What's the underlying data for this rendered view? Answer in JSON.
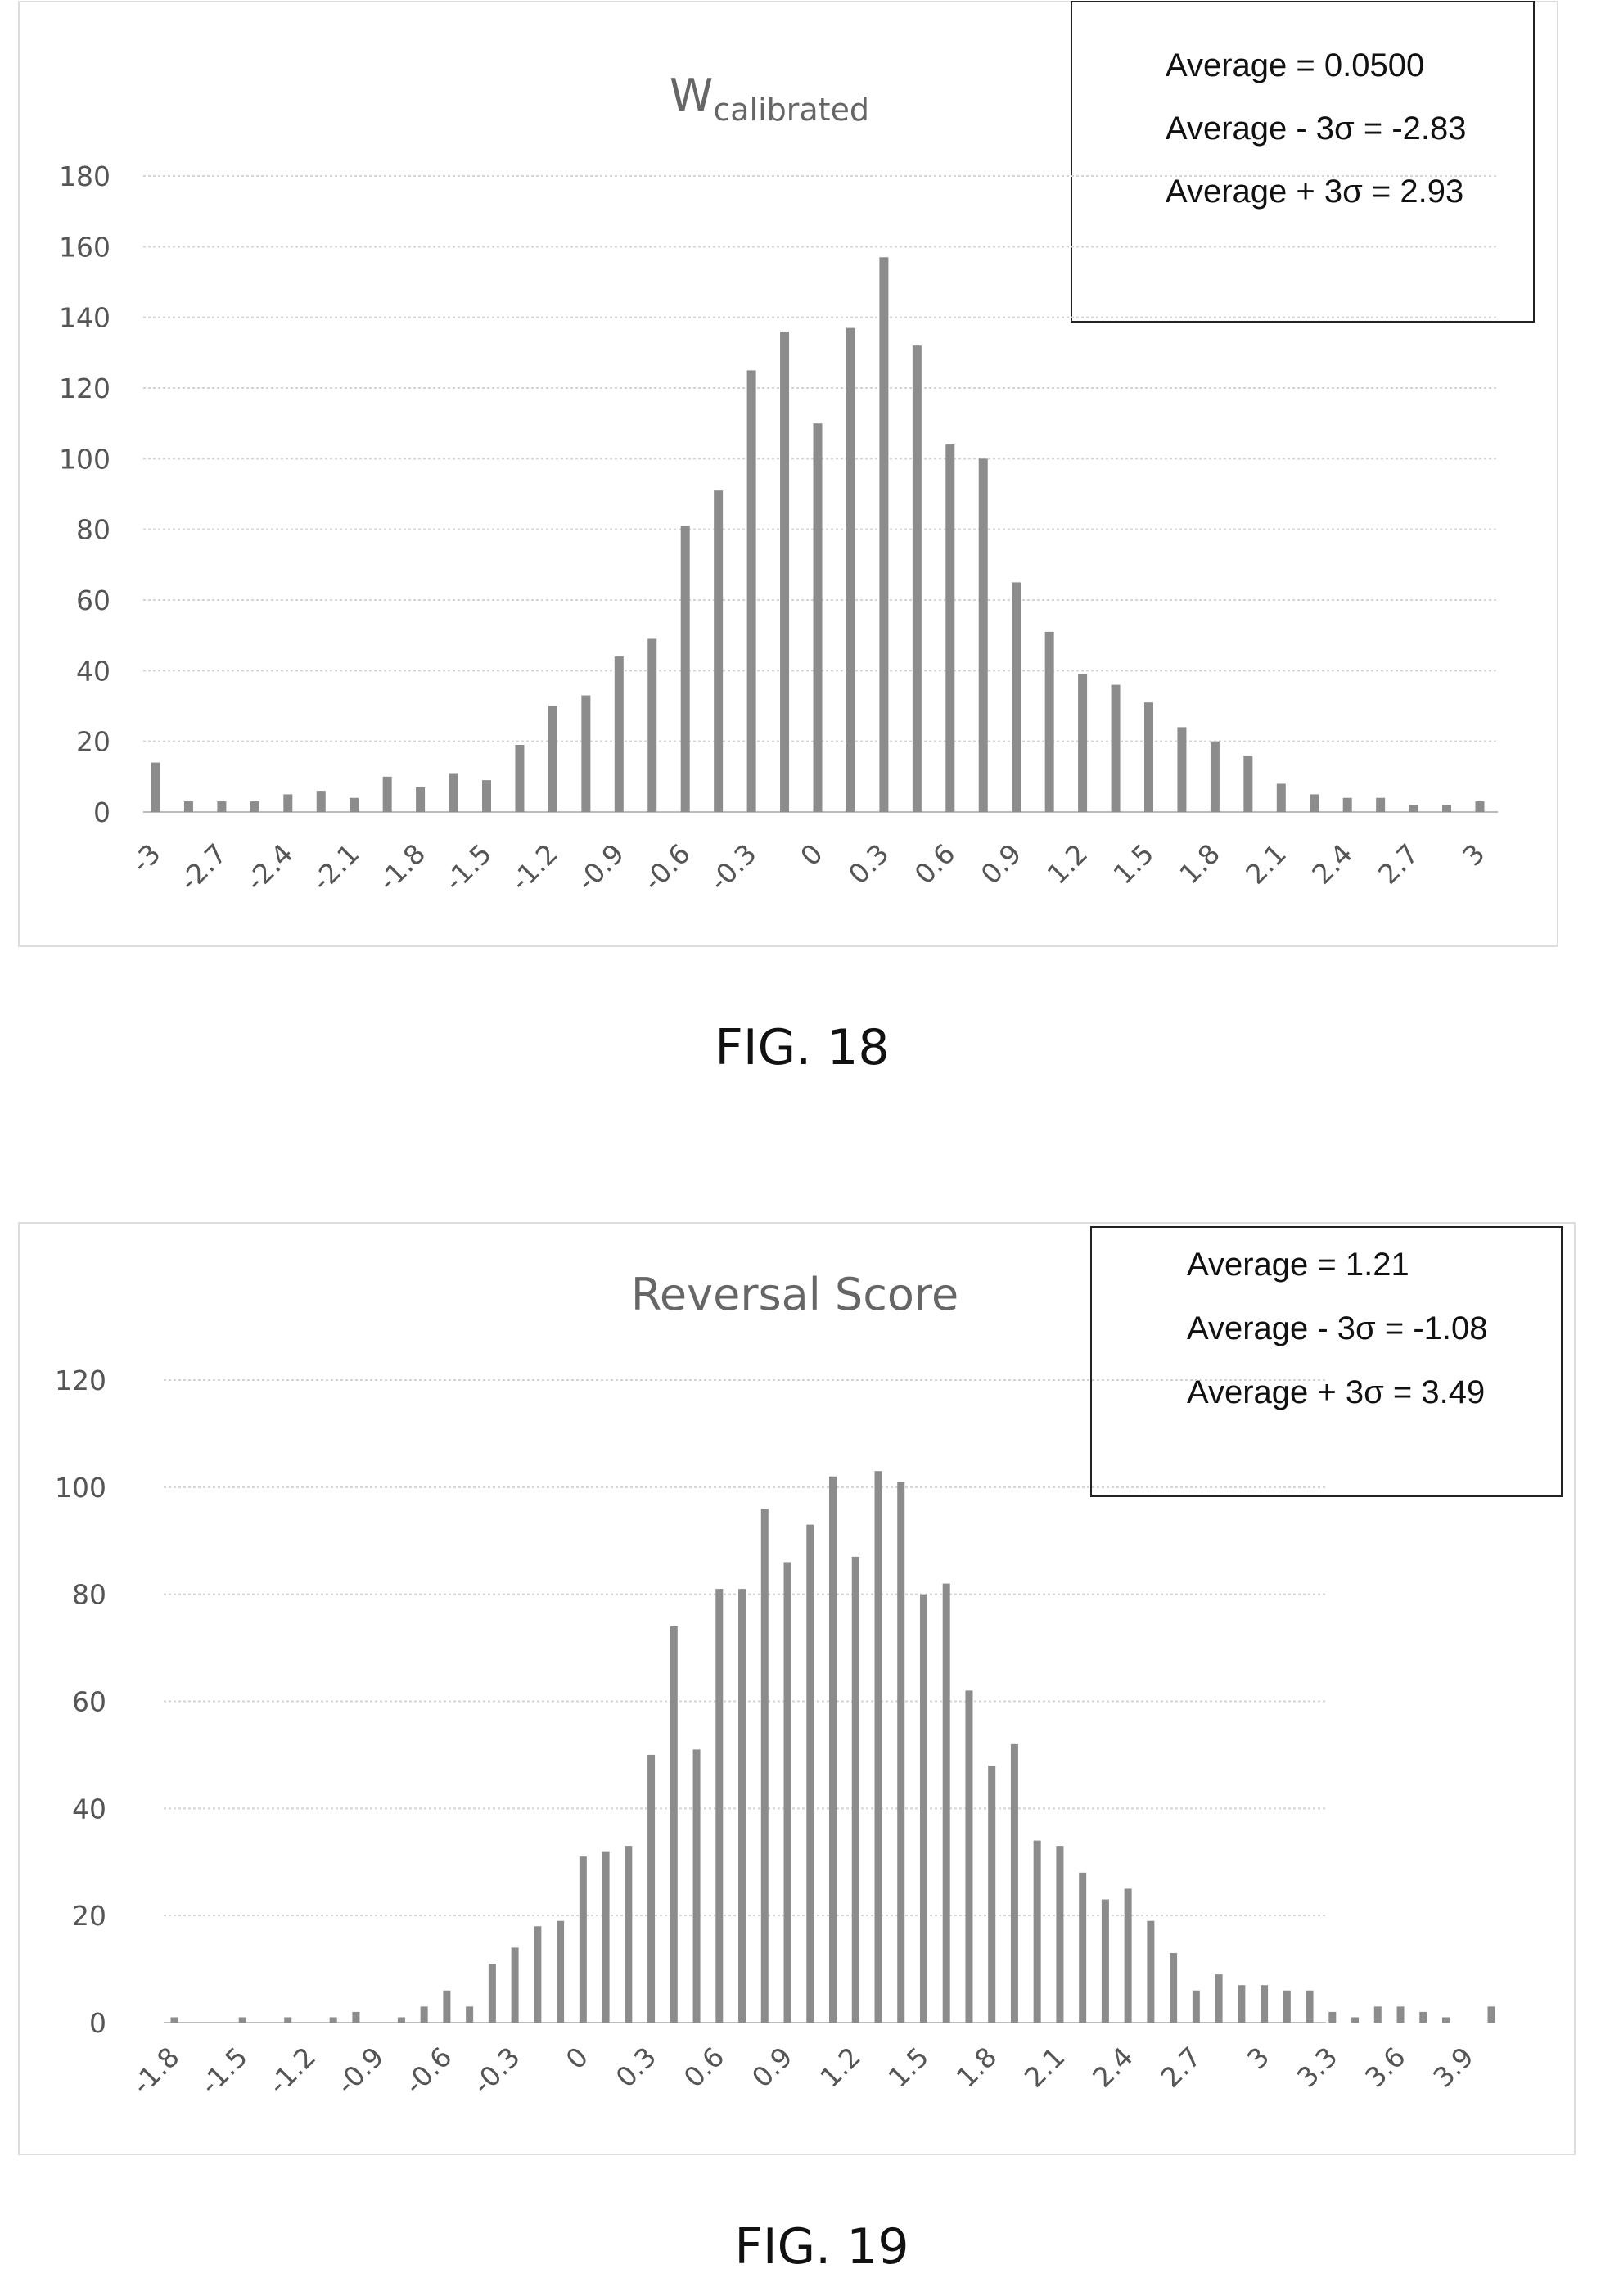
{
  "chart_data": [
    {
      "type": "bar",
      "title": "W",
      "title_subscript": "calibrated",
      "caption": "FIG. 18",
      "xlabel": "",
      "ylabel": "",
      "ylim": [
        0,
        180
      ],
      "yticks": [
        0,
        20,
        40,
        60,
        80,
        100,
        120,
        140,
        160,
        180
      ],
      "categories": [
        -3,
        -2.85,
        -2.7,
        -2.55,
        -2.4,
        -2.25,
        -2.1,
        -1.95,
        -1.8,
        -1.65,
        -1.5,
        -1.35,
        -1.2,
        -1.05,
        -0.9,
        -0.75,
        -0.6,
        -0.45,
        -0.3,
        -0.15,
        0,
        0.15,
        0.3,
        0.45,
        0.6,
        0.75,
        0.9,
        1.05,
        1.2,
        1.35,
        1.5,
        1.65,
        1.8,
        1.95,
        2.1,
        2.25,
        2.4,
        2.55,
        2.7,
        2.85,
        3
      ],
      "values": [
        14,
        3,
        3,
        3,
        5,
        6,
        4,
        10,
        7,
        11,
        9,
        19,
        30,
        33,
        44,
        49,
        81,
        91,
        125,
        136,
        110,
        137,
        157,
        132,
        104,
        100,
        65,
        51,
        39,
        36,
        31,
        24,
        20,
        16,
        8,
        5,
        4,
        4,
        2,
        2,
        3
      ],
      "label_every": 2,
      "legend": [
        "Average = 0.0500",
        "Average - 3σ = -2.83",
        "Average + 3σ = 2.93"
      ],
      "grid": true,
      "legend_placement": "top-right",
      "bar_color": "#8c8c8c"
    },
    {
      "type": "bar",
      "title": "Reversal Score",
      "caption": "FIG. 19",
      "xlabel": "",
      "ylabel": "",
      "ylim": [
        0,
        120
      ],
      "yticks": [
        0,
        20,
        40,
        60,
        80,
        100,
        120
      ],
      "categories": [
        -1.8,
        -1.7,
        -1.6,
        -1.5,
        -1.4,
        -1.3,
        -1.2,
        -1.1,
        -1.0,
        -0.9,
        -0.8,
        -0.7,
        -0.6,
        -0.5,
        -0.4,
        -0.3,
        -0.2,
        -0.1,
        0,
        0.1,
        0.2,
        0.3,
        0.4,
        0.5,
        0.6,
        0.7,
        0.8,
        0.9,
        1.0,
        1.1,
        1.2,
        1.3,
        1.4,
        1.5,
        1.6,
        1.7,
        1.8,
        1.9,
        2.0,
        2.1,
        2.2,
        2.3,
        2.4,
        2.5,
        2.6,
        2.7,
        2.8,
        2.9,
        3.0,
        3.1,
        3.2,
        3.3,
        3.4,
        3.5,
        3.6,
        3.7,
        3.8,
        3.9,
        4.0
      ],
      "values": [
        1,
        0,
        0,
        1,
        0,
        1,
        0,
        1,
        2,
        0,
        1,
        3,
        6,
        3,
        11,
        14,
        18,
        19,
        31,
        32,
        33,
        50,
        74,
        51,
        81,
        81,
        96,
        86,
        93,
        102,
        87,
        103,
        101,
        80,
        82,
        62,
        48,
        52,
        34,
        33,
        28,
        23,
        25,
        19,
        13,
        6,
        9,
        7,
        7,
        6,
        6,
        2,
        1,
        3,
        3,
        2,
        1,
        0,
        3
      ],
      "label_every": 3,
      "legend": [
        "Average = 1.21",
        "Average - 3σ = -1.08",
        "Average + 3σ = 3.49"
      ],
      "grid": true,
      "legend_placement": "top-right",
      "bar_color": "#8c8c8c"
    }
  ]
}
